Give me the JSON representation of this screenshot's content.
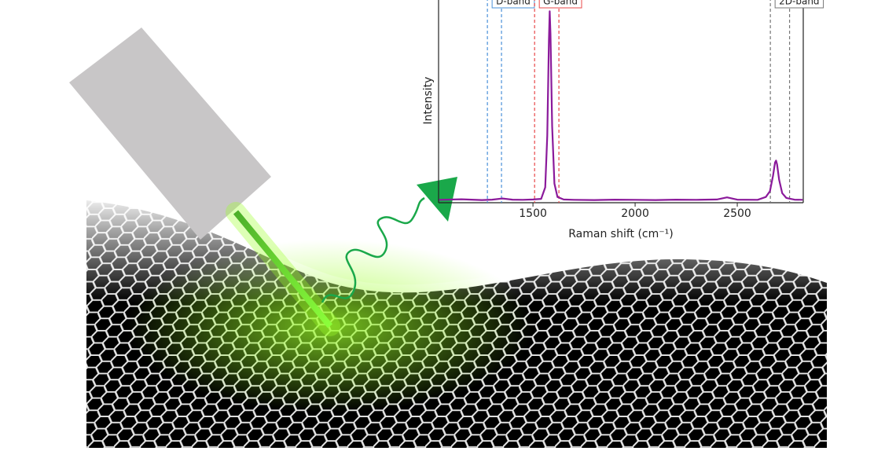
{
  "chart_data": {
    "type": "line",
    "x_label": "Raman shift (cm⁻¹)",
    "y_label": "Intensity",
    "x": [
      1040,
      1150,
      1250,
      1300,
      1350,
      1400,
      1450,
      1500,
      1540,
      1560,
      1570,
      1578,
      1582,
      1586,
      1594,
      1605,
      1620,
      1650,
      1700,
      1800,
      1900,
      2000,
      2100,
      2200,
      2300,
      2400,
      2450,
      2500,
      2600,
      2640,
      2660,
      2675,
      2685,
      2690,
      2695,
      2705,
      2720,
      2740,
      2780,
      2820
    ],
    "values": [
      0.015,
      0.018,
      0.014,
      0.016,
      0.022,
      0.016,
      0.015,
      0.017,
      0.02,
      0.08,
      0.35,
      0.85,
      1.0,
      0.88,
      0.4,
      0.1,
      0.03,
      0.017,
      0.015,
      0.014,
      0.016,
      0.015,
      0.014,
      0.016,
      0.015,
      0.017,
      0.028,
      0.016,
      0.015,
      0.03,
      0.06,
      0.14,
      0.21,
      0.22,
      0.2,
      0.12,
      0.05,
      0.025,
      0.016,
      0.015
    ],
    "color": "#8b1a9b",
    "xlim": [
      1038,
      2823
    ],
    "ylim": [
      0,
      1.1
    ],
    "xticks": [
      1500,
      2000,
      2500
    ],
    "bands": [
      {
        "label": "D-band",
        "color": "#4a90d9",
        "range": [
          1277,
          1346
        ]
      },
      {
        "label": "G-band",
        "color": "#e8484a",
        "range": [
          1508,
          1627
        ]
      },
      {
        "label": "2D-band",
        "color": "#777777",
        "range": [
          2662,
          2756
        ]
      }
    ]
  }
}
